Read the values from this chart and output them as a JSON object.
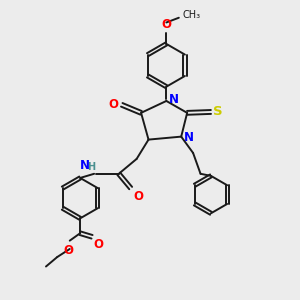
{
  "bg_color": "#ececec",
  "bond_color": "#1a1a1a",
  "N_color": "#0000ff",
  "O_color": "#ff0000",
  "S_color": "#cccc00",
  "H_color": "#4a9090",
  "figsize": [
    3.0,
    3.0
  ],
  "dpi": 100,
  "xlim": [
    0,
    10
  ],
  "ylim": [
    0,
    10
  ],
  "lw": 1.4,
  "fs": 8.5,
  "fs_small": 7.0
}
